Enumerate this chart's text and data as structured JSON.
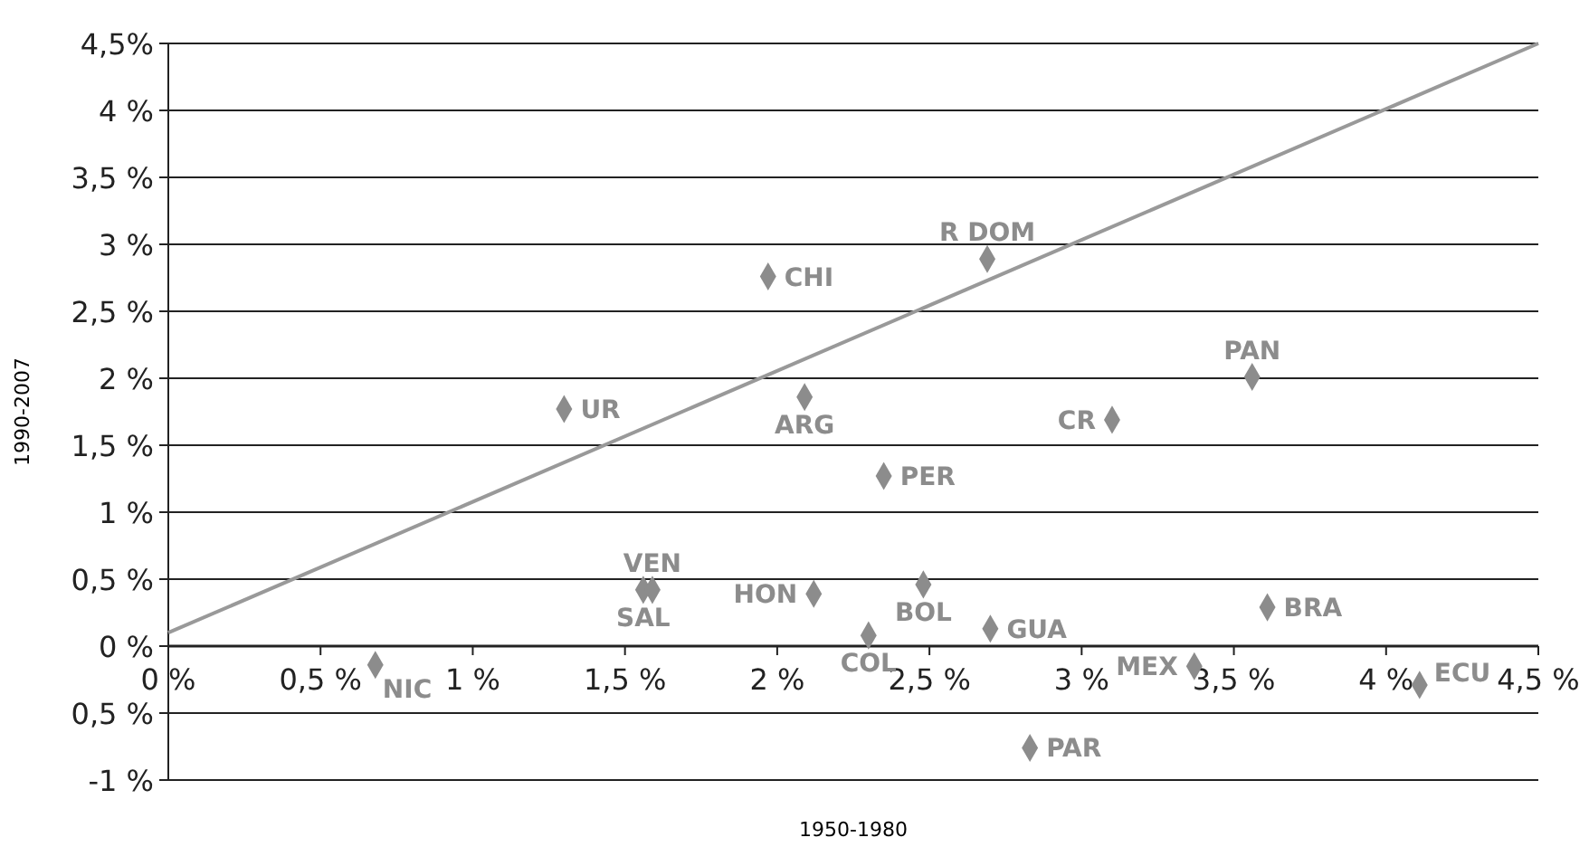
{
  "chart_data": {
    "type": "scatter",
    "xlabel": "1950-1980",
    "ylabel": "1990-2007",
    "xlim": [
      0,
      4.5
    ],
    "ylim": [
      -1,
      4.5
    ],
    "xticks": [
      {
        "value": 0,
        "label": "0 %"
      },
      {
        "value": 0.5,
        "label": "0,5 %"
      },
      {
        "value": 1,
        "label": "1 %"
      },
      {
        "value": 1.5,
        "label": "1,5 %"
      },
      {
        "value": 2,
        "label": "2 %"
      },
      {
        "value": 2.5,
        "label": "2,5 %"
      },
      {
        "value": 3,
        "label": "3 %"
      },
      {
        "value": 3.5,
        "label": "3,5 %"
      },
      {
        "value": 4,
        "label": "4 %"
      },
      {
        "value": 4.5,
        "label": "4,5 %"
      }
    ],
    "yticks": [
      {
        "value": -1,
        "label": "-1 %"
      },
      {
        "value": -0.5,
        "label": "0,5 %"
      },
      {
        "value": 0,
        "label": "0 %"
      },
      {
        "value": 0.5,
        "label": "0,5 %"
      },
      {
        "value": 1,
        "label": "1 %"
      },
      {
        "value": 1.5,
        "label": "1,5 %"
      },
      {
        "value": 2,
        "label": "2 %"
      },
      {
        "value": 2.5,
        "label": "2,5 %"
      },
      {
        "value": 3,
        "label": "3 %"
      },
      {
        "value": 3.5,
        "label": "3,5 %"
      },
      {
        "value": 4,
        "label": "4 %"
      },
      {
        "value": 4.5,
        "label": "4,5%"
      }
    ],
    "grid": "y",
    "marker": "diamond",
    "series": [
      {
        "name": "NIC",
        "color": "#8c8c8c",
        "x": [
          0.68
        ],
        "values": [
          -0.14
        ]
      },
      {
        "name": "SAL",
        "color": "#8c8c8c",
        "x": [
          1.56
        ],
        "values": [
          0.42
        ]
      },
      {
        "name": "VEN",
        "color": "#8c8c8c",
        "x": [
          1.59
        ],
        "values": [
          0.42
        ]
      },
      {
        "name": "UR",
        "color": "#8c8c8c",
        "x": [
          1.3
        ],
        "values": [
          1.77
        ]
      },
      {
        "name": "CHI",
        "color": "#8c8c8c",
        "x": [
          1.97
        ],
        "values": [
          2.76
        ]
      },
      {
        "name": "ARG",
        "color": "#8c8c8c",
        "x": [
          2.09
        ],
        "values": [
          1.86
        ]
      },
      {
        "name": "PER",
        "color": "#8c8c8c",
        "x": [
          2.35
        ],
        "values": [
          1.27
        ]
      },
      {
        "name": "HON",
        "color": "#8c8c8c",
        "x": [
          2.12
        ],
        "values": [
          0.39
        ]
      },
      {
        "name": "COL",
        "color": "#8c8c8c",
        "x": [
          2.3
        ],
        "values": [
          0.08
        ]
      },
      {
        "name": "BOL",
        "color": "#8c8c8c",
        "x": [
          2.48
        ],
        "values": [
          0.46
        ]
      },
      {
        "name": "R DOM",
        "color": "#8c8c8c",
        "x": [
          2.69
        ],
        "values": [
          2.89
        ]
      },
      {
        "name": "PAN",
        "color": "#8c8c8c",
        "x": [
          3.56
        ],
        "values": [
          2.01
        ]
      },
      {
        "name": "CR",
        "color": "#8c8c8c",
        "x": [
          3.1
        ],
        "values": [
          1.69
        ]
      },
      {
        "name": "GUA",
        "color": "#8c8c8c",
        "x": [
          2.7
        ],
        "values": [
          0.13
        ]
      },
      {
        "name": "BRA",
        "color": "#8c8c8c",
        "x": [
          3.61
        ],
        "values": [
          0.29
        ]
      },
      {
        "name": "MEX",
        "color": "#8c8c8c",
        "x": [
          3.37
        ],
        "values": [
          -0.15
        ]
      },
      {
        "name": "ECU",
        "color": "#8c8c8c",
        "x": [
          4.11
        ],
        "values": [
          -0.29
        ]
      },
      {
        "name": "PAR",
        "color": "#8c8c8c",
        "x": [
          2.83
        ],
        "values": [
          -0.76
        ]
      },
      {
        "type": "line",
        "color": "#999999",
        "x": [
          0,
          4.5
        ],
        "values": [
          0.1,
          4.5
        ],
        "marker": "none"
      }
    ]
  }
}
